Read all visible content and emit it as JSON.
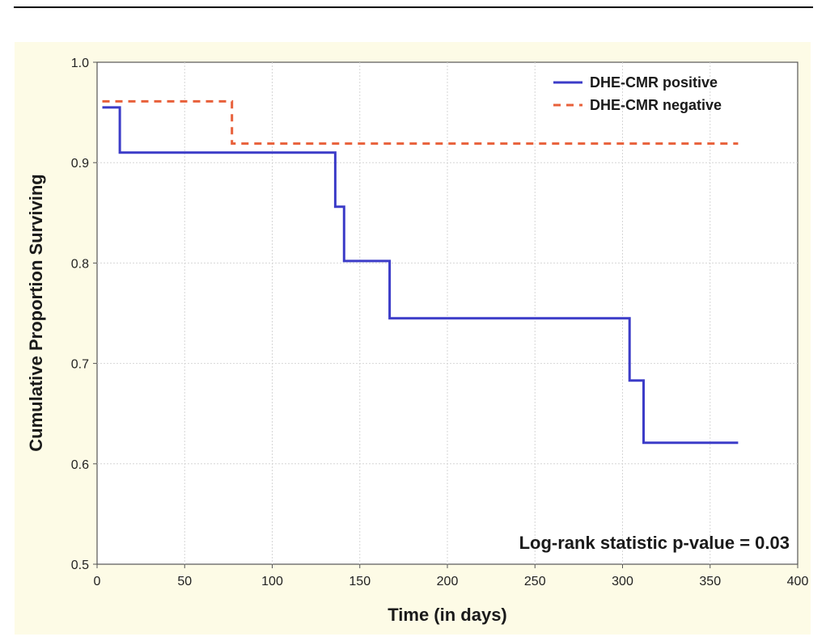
{
  "chart_data": {
    "type": "line",
    "step": true,
    "xlabel": "Time (in days)",
    "ylabel": "Cumulative Proportion Surviving",
    "xlim": [
      0,
      400
    ],
    "ylim": [
      0.5,
      1.0
    ],
    "x_ticks": [
      0,
      50,
      100,
      150,
      200,
      250,
      300,
      350,
      400
    ],
    "y_ticks": [
      0.5,
      0.6,
      0.7,
      0.8,
      0.9,
      1.0
    ],
    "x_tick_labels": [
      "0",
      "50",
      "100",
      "150",
      "200",
      "250",
      "300",
      "350",
      "400"
    ],
    "y_tick_labels": [
      "0.5",
      "0.6",
      "0.7",
      "0.8",
      "0.9",
      "1.0"
    ],
    "grid": true,
    "legend_position": "top-right",
    "series": [
      {
        "name": "DHE-CMR positive",
        "color": "#3c3cc8",
        "line_style": "solid",
        "x": [
          3,
          13,
          13,
          136,
          136,
          141,
          141,
          167,
          167,
          304,
          304,
          312,
          312,
          366
        ],
        "y": [
          0.955,
          0.955,
          0.91,
          0.91,
          0.856,
          0.856,
          0.802,
          0.802,
          0.745,
          0.745,
          0.683,
          0.683,
          0.621,
          0.621
        ]
      },
      {
        "name": "DHE-CMR negative",
        "color": "#e8603a",
        "line_style": "dashed",
        "x": [
          3,
          77,
          77,
          366
        ],
        "y": [
          0.961,
          0.961,
          0.919,
          0.919
        ]
      }
    ],
    "annotation": "Log-rank statistic p-value = 0.03"
  }
}
